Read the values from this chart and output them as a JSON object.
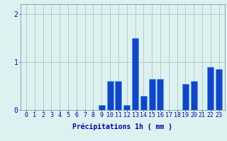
{
  "hours": [
    0,
    1,
    2,
    3,
    4,
    5,
    6,
    7,
    8,
    9,
    10,
    11,
    12,
    13,
    14,
    15,
    16,
    17,
    18,
    19,
    20,
    21,
    22,
    23
  ],
  "values": [
    0,
    0,
    0,
    0,
    0,
    0,
    0,
    0,
    0,
    0.1,
    0.6,
    0.6,
    0.1,
    1.5,
    0.3,
    0.65,
    0.65,
    0,
    0,
    0.55,
    0.6,
    0,
    0.9,
    0.85
  ],
  "bar_color": "#1144cc",
  "bar_edge_color": "#4499ff",
  "background_color": "#ddf2f0",
  "grid_color": "#aac8c4",
  "axis_color": "#7799aa",
  "text_color": "#0000bb",
  "xlabel": "Précipitations 1h ( mm )",
  "ylim": [
    0,
    2.2
  ],
  "yticks": [
    0,
    1,
    2
  ],
  "label_fontsize": 7,
  "tick_fontsize": 6
}
